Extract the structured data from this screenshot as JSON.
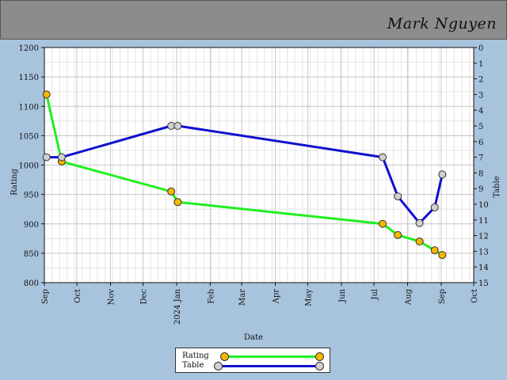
{
  "header": {
    "player_name": "Mark Nguyen"
  },
  "colors": {
    "header_bg": "#8c8c8c",
    "page_bg": "#a8c4dd",
    "rating_line": "#22ee22",
    "rating_marker": "#f5b700",
    "table_line": "#1010d0",
    "table_marker": "#d0d0d0"
  },
  "chart_data": {
    "type": "line",
    "title": "",
    "xlabel": "Date",
    "ylabel": "Rating",
    "y2label": "Table",
    "x_ticks": [
      "Sep",
      "Oct",
      "Nov",
      "Dec",
      "2024 Jan",
      "Feb",
      "Mar",
      "Apr",
      "May",
      "Jun",
      "Jul",
      "Aug",
      "Sep",
      "Oct"
    ],
    "x_tick_dates": [
      "2023-09-01",
      "2023-10-01",
      "2023-11-01",
      "2023-12-01",
      "2024-01-01",
      "2024-02-01",
      "2024-03-01",
      "2024-04-01",
      "2024-05-01",
      "2024-06-01",
      "2024-07-01",
      "2024-08-01",
      "2024-09-01",
      "2024-10-01"
    ],
    "xlim": [
      "2023-09-01",
      "2024-10-01"
    ],
    "ylim": [
      800,
      1200
    ],
    "y_ticks": [
      800,
      850,
      900,
      950,
      1000,
      1050,
      1100,
      1150,
      1200
    ],
    "y2lim": [
      0,
      15
    ],
    "y2_inverted": true,
    "y2_ticks": [
      0,
      1,
      2,
      3,
      4,
      5,
      6,
      7,
      8,
      9,
      10,
      11,
      12,
      13,
      14,
      15
    ],
    "grid": true,
    "legend_position": "bottom",
    "series": [
      {
        "name": "Rating",
        "axis": "left",
        "points": [
          {
            "x": "2023-09-03",
            "y": 1120
          },
          {
            "x": "2023-09-17",
            "y": 1006
          },
          {
            "x": "2023-12-27",
            "y": 955
          },
          {
            "x": "2024-01-02",
            "y": 937
          },
          {
            "x": "2024-07-09",
            "y": 900
          },
          {
            "x": "2024-07-23",
            "y": 881
          },
          {
            "x": "2024-08-12",
            "y": 870
          },
          {
            "x": "2024-08-26",
            "y": 855
          },
          {
            "x": "2024-09-02",
            "y": 847
          }
        ]
      },
      {
        "name": "Table",
        "axis": "right",
        "points": [
          {
            "x": "2023-09-03",
            "y": 7
          },
          {
            "x": "2023-09-17",
            "y": 7
          },
          {
            "x": "2023-12-27",
            "y": 5
          },
          {
            "x": "2024-01-02",
            "y": 5
          },
          {
            "x": "2024-07-09",
            "y": 7
          },
          {
            "x": "2024-07-23",
            "y": 9.5
          },
          {
            "x": "2024-08-12",
            "y": 11.2
          },
          {
            "x": "2024-08-26",
            "y": 10.2
          },
          {
            "x": "2024-09-02",
            "y": 8.1
          }
        ]
      }
    ]
  }
}
